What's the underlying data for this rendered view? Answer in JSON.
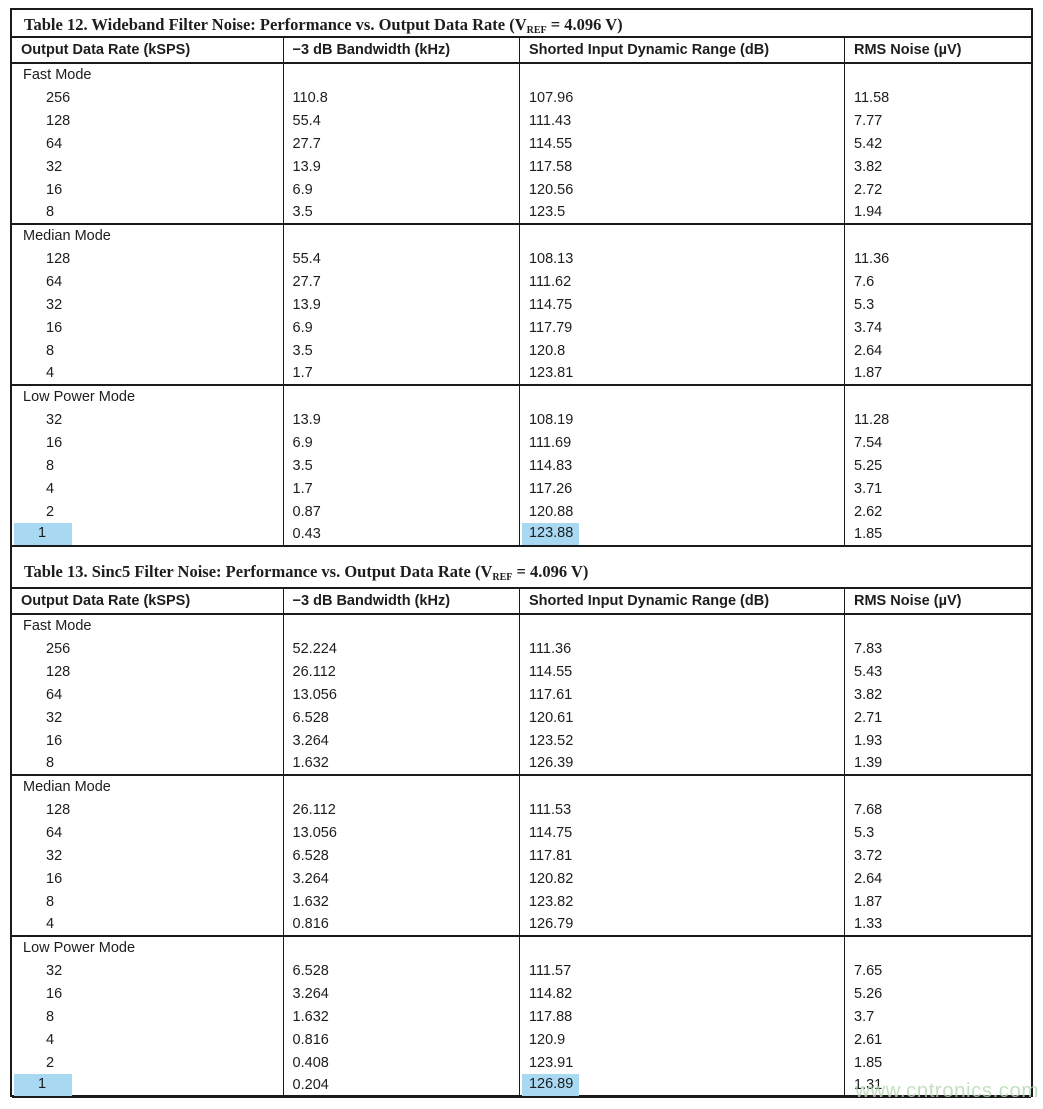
{
  "watermark": "www.cntronics.com",
  "colors": {
    "highlight": "#a9d9f2",
    "watermark": "#b4d9b2"
  },
  "tables": [
    {
      "title": {
        "pre": "Table 12. Wideband Filter Noise: Performance vs. Output Data Rate (V",
        "sub": "REF",
        "post": " = 4.096 V)"
      },
      "columns": [
        "Output Data Rate (kSPS)",
        "−3 dB Bandwidth (kHz)",
        "Shorted Input Dynamic Range (dB)",
        "RMS Noise (µV)"
      ],
      "sections": [
        {
          "label": "Fast Mode",
          "rows": [
            {
              "odr": "256",
              "bw": "110.8",
              "dr": "107.96",
              "rms": "11.58"
            },
            {
              "odr": "128",
              "bw": "55.4",
              "dr": "111.43",
              "rms": "7.77"
            },
            {
              "odr": "64",
              "bw": "27.7",
              "dr": "114.55",
              "rms": "5.42"
            },
            {
              "odr": "32",
              "bw": "13.9",
              "dr": "117.58",
              "rms": "3.82"
            },
            {
              "odr": "16",
              "bw": "6.9",
              "dr": "120.56",
              "rms": "2.72"
            },
            {
              "odr": "8",
              "bw": "3.5",
              "dr": "123.5",
              "rms": "1.94"
            }
          ]
        },
        {
          "label": "Median Mode",
          "rows": [
            {
              "odr": "128",
              "bw": "55.4",
              "dr": "108.13",
              "rms": "11.36"
            },
            {
              "odr": "64",
              "bw": "27.7",
              "dr": "111.62",
              "rms": "7.6"
            },
            {
              "odr": "32",
              "bw": "13.9",
              "dr": "114.75",
              "rms": "5.3"
            },
            {
              "odr": "16",
              "bw": "6.9",
              "dr": "117.79",
              "rms": "3.74"
            },
            {
              "odr": "8",
              "bw": "3.5",
              "dr": "120.8",
              "rms": "2.64"
            },
            {
              "odr": "4",
              "bw": "1.7",
              "dr": "123.81",
              "rms": "1.87"
            }
          ]
        },
        {
          "label": "Low Power Mode",
          "rows": [
            {
              "odr": "32",
              "bw": "13.9",
              "dr": "108.19",
              "rms": "11.28"
            },
            {
              "odr": "16",
              "bw": "6.9",
              "dr": "111.69",
              "rms": "7.54"
            },
            {
              "odr": "8",
              "bw": "3.5",
              "dr": "114.83",
              "rms": "5.25"
            },
            {
              "odr": "4",
              "bw": "1.7",
              "dr": "117.26",
              "rms": "3.71"
            },
            {
              "odr": "2",
              "bw": "0.87",
              "dr": "120.88",
              "rms": "2.62"
            },
            {
              "odr": "1",
              "bw": "0.43",
              "dr": "123.88",
              "rms": "1.85",
              "highlight": [
                "odr",
                "dr"
              ]
            }
          ]
        }
      ]
    },
    {
      "title": {
        "pre": "Table 13. Sinc5 Filter Noise: Performance vs. Output Data Rate (V",
        "sub": "REF",
        "post": " = 4.096 V)"
      },
      "columns": [
        "Output Data Rate (kSPS)",
        "−3 dB Bandwidth (kHz)",
        "Shorted Input Dynamic Range (dB)",
        "RMS Noise (µV)"
      ],
      "sections": [
        {
          "label": "Fast Mode",
          "rows": [
            {
              "odr": "256",
              "bw": "52.224",
              "dr": "111.36",
              "rms": "7.83"
            },
            {
              "odr": "128",
              "bw": "26.112",
              "dr": "114.55",
              "rms": "5.43"
            },
            {
              "odr": "64",
              "bw": "13.056",
              "dr": "117.61",
              "rms": "3.82"
            },
            {
              "odr": "32",
              "bw": "6.528",
              "dr": "120.61",
              "rms": "2.71"
            },
            {
              "odr": "16",
              "bw": "3.264",
              "dr": "123.52",
              "rms": "1.93"
            },
            {
              "odr": "8",
              "bw": "1.632",
              "dr": "126.39",
              "rms": "1.39"
            }
          ]
        },
        {
          "label": "Median Mode",
          "rows": [
            {
              "odr": "128",
              "bw": "26.112",
              "dr": "111.53",
              "rms": "7.68"
            },
            {
              "odr": "64",
              "bw": "13.056",
              "dr": "114.75",
              "rms": "5.3"
            },
            {
              "odr": "32",
              "bw": "6.528",
              "dr": "117.81",
              "rms": "3.72"
            },
            {
              "odr": "16",
              "bw": "3.264",
              "dr": "120.82",
              "rms": "2.64"
            },
            {
              "odr": "8",
              "bw": "1.632",
              "dr": "123.82",
              "rms": "1.87"
            },
            {
              "odr": "4",
              "bw": "0.816",
              "dr": "126.79",
              "rms": "1.33"
            }
          ]
        },
        {
          "label": "Low Power Mode",
          "rows": [
            {
              "odr": "32",
              "bw": "6.528",
              "dr": "111.57",
              "rms": "7.65"
            },
            {
              "odr": "16",
              "bw": "3.264",
              "dr": "114.82",
              "rms": "5.26"
            },
            {
              "odr": "8",
              "bw": "1.632",
              "dr": "117.88",
              "rms": "3.7"
            },
            {
              "odr": "4",
              "bw": "0.816",
              "dr": "120.9",
              "rms": "2.61"
            },
            {
              "odr": "2",
              "bw": "0.408",
              "dr": "123.91",
              "rms": "1.85"
            },
            {
              "odr": "1",
              "bw": "0.204",
              "dr": "126.89",
              "rms": "1.31",
              "highlight": [
                "odr",
                "dr"
              ]
            }
          ]
        }
      ]
    }
  ]
}
